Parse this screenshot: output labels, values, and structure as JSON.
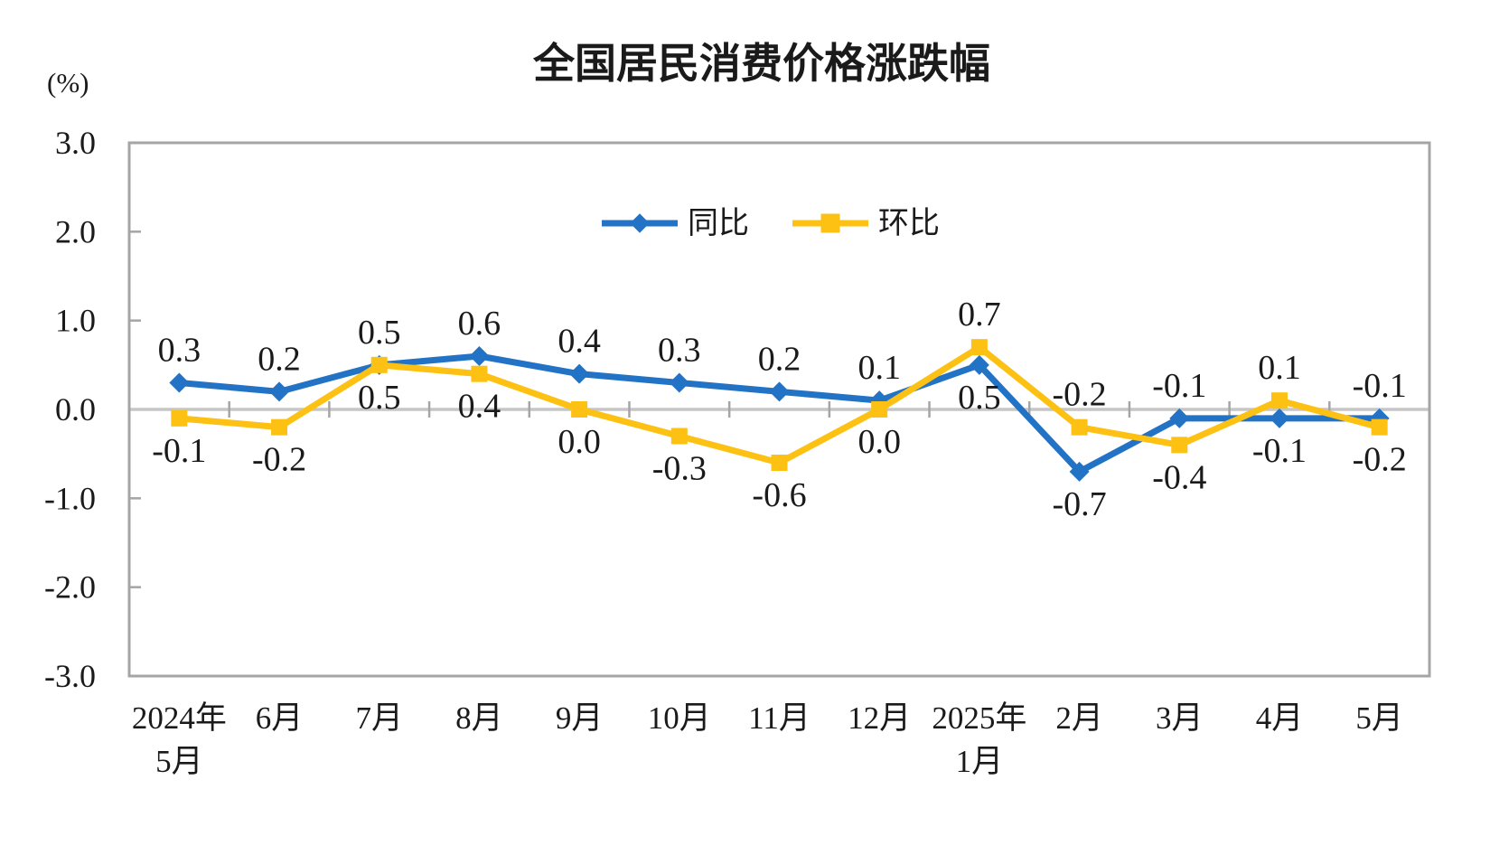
{
  "chart_data": {
    "type": "line",
    "title": "全国居民消费价格涨跌幅",
    "unit_label": "(%)",
    "ylabel": "(%)",
    "ylim": [
      -3.0,
      3.0
    ],
    "ytick_interval": 1.0,
    "ytick_labels": [
      "3.0",
      "2.0",
      "1.0",
      "0.0",
      "-1.0",
      "-2.0",
      "-3.0"
    ],
    "grid": false,
    "zero_line": true,
    "legend_position": "top-center-inside",
    "categories": [
      "2024年5月",
      "2024年6月",
      "2024年7月",
      "2024年8月",
      "2024年9月",
      "2024年10月",
      "2024年11月",
      "2024年12月",
      "2025年1月",
      "2025年2月",
      "2025年3月",
      "2025年4月",
      "2025年5月"
    ],
    "category_tick_labels": [
      [
        "2024年",
        "5月"
      ],
      [
        "6月"
      ],
      [
        "7月"
      ],
      [
        "8月"
      ],
      [
        "9月"
      ],
      [
        "10月"
      ],
      [
        "11月"
      ],
      [
        "12月"
      ],
      [
        "2025年",
        "1月"
      ],
      [
        "2月"
      ],
      [
        "3月"
      ],
      [
        "4月"
      ],
      [
        "5月"
      ]
    ],
    "series": [
      {
        "name": "同比",
        "color": "#2273C5",
        "marker": "diamond",
        "values": [
          0.3,
          0.2,
          0.5,
          0.6,
          0.4,
          0.3,
          0.2,
          0.1,
          0.5,
          -0.7,
          -0.1,
          -0.1,
          -0.1
        ],
        "label_side": [
          "above",
          "above",
          "above",
          "above",
          "above",
          "above",
          "above",
          "above",
          "below",
          "below",
          "above",
          "below",
          "above"
        ]
      },
      {
        "name": "环比",
        "color": "#FCC113",
        "marker": "square",
        "values": [
          -0.1,
          -0.2,
          0.5,
          0.4,
          0.0,
          -0.3,
          -0.6,
          0.0,
          0.7,
          -0.2,
          -0.4,
          0.1,
          -0.2
        ],
        "label_side": [
          "below",
          "below",
          "below",
          "below",
          "below",
          "below",
          "below",
          "below",
          "above",
          "above",
          "below",
          "above",
          "below"
        ]
      }
    ],
    "colors": {
      "axis_border": "#A5A5A5",
      "zero_line": "#C6C6C6",
      "text": "#1A1A1A"
    }
  }
}
